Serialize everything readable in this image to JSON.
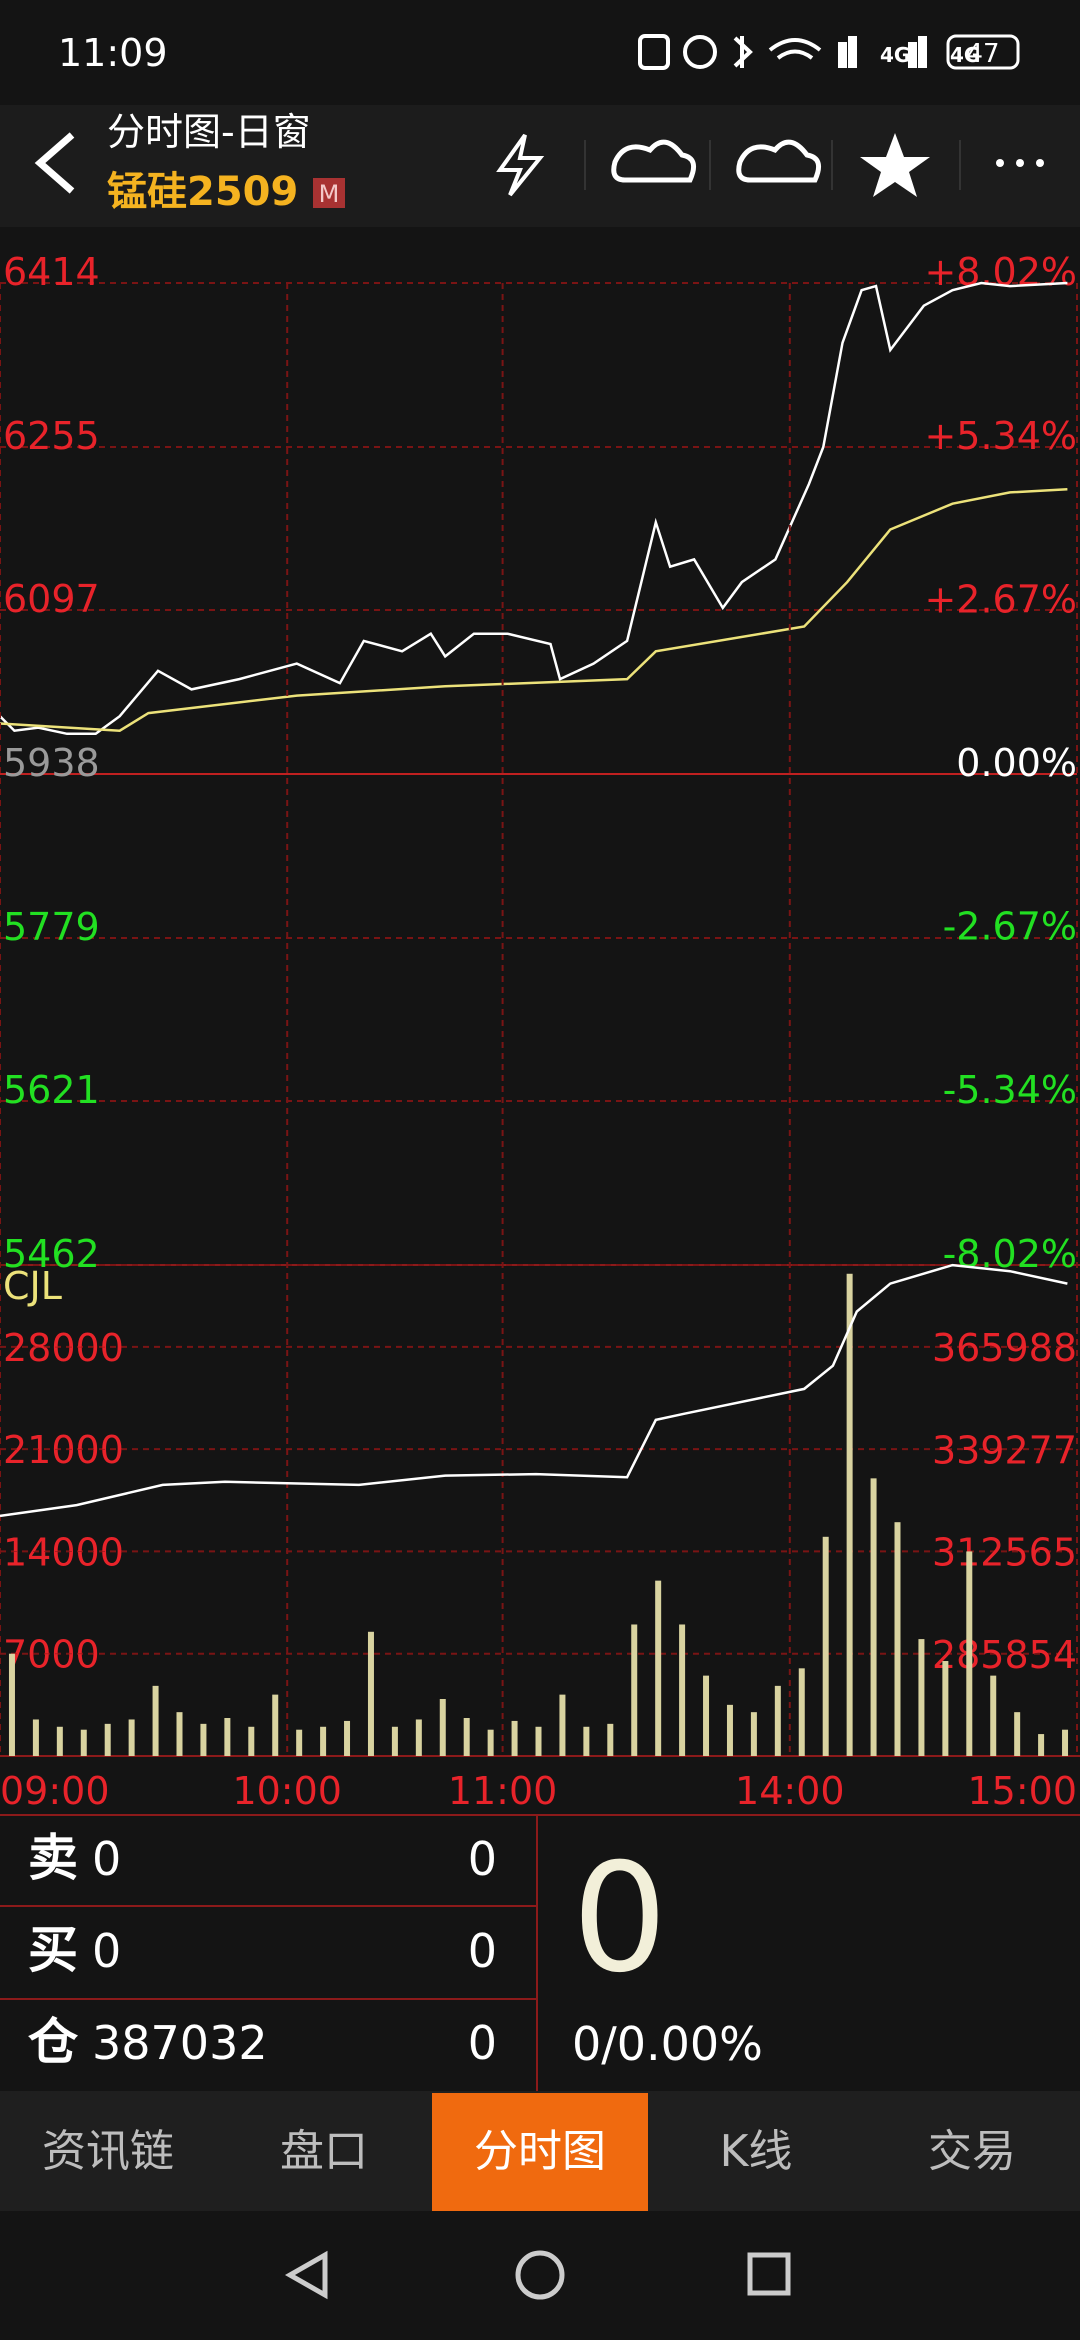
{
  "status_bar": {
    "time": "11:09",
    "network": [
      "4G",
      "4G"
    ],
    "battery": "47"
  },
  "header": {
    "title": "分时图-日窗",
    "symbol": "锰硅2509",
    "badge": "M"
  },
  "chart_data": [
    {
      "type": "line",
      "xlim": [
        0,
        225
      ],
      "ylim": [
        5462,
        6414
      ],
      "yticks": [
        6414,
        6255,
        6097,
        5938,
        5779,
        5621,
        5462
      ],
      "y2lim": [
        -8.02,
        8.02
      ],
      "y2ticks": [
        {
          "value": 8.02,
          "label": "+8.02%"
        },
        {
          "value": 5.34,
          "label": "+5.34%"
        },
        {
          "value": 2.67,
          "label": "+2.67%"
        },
        {
          "value": 0,
          "label": "0.00%"
        },
        {
          "value": -2.67,
          "label": "-2.67%"
        },
        {
          "value": -5.34,
          "label": "-5.34%"
        },
        {
          "value": -8.02,
          "label": "-8.02%"
        }
      ],
      "grid": true,
      "series": [
        {
          "color": "#ffffff",
          "x": [
            0,
            3,
            8,
            14,
            20,
            25,
            33,
            40,
            50,
            62,
            71,
            76,
            84,
            90,
            93,
            99,
            106,
            115,
            117,
            124,
            131,
            137,
            140,
            145,
            151,
            155,
            162,
            169,
            172,
            176,
            180,
            183,
            186,
            193,
            199,
            205,
            211,
            223
          ],
          "values": [
            5994,
            5980,
            5983,
            5977,
            5977,
            5994,
            6038,
            6020,
            6030,
            6045,
            6026,
            6067,
            6057,
            6074,
            6052,
            6074,
            6074,
            6064,
            6030,
            6045,
            6067,
            6182,
            6139,
            6146,
            6099,
            6124,
            6146,
            6219,
            6255,
            6356,
            6407,
            6411,
            6349,
            6392,
            6407,
            6414,
            6411,
            6414
          ]
        },
        {
          "color": "#ece27a",
          "x": [
            0,
            25,
            31,
            62,
            93,
            131,
            137,
            168,
            177,
            186,
            199,
            211,
            223
          ],
          "values": [
            5987,
            5980,
            5997,
            6014,
            6023,
            6030,
            6057,
            6081,
            6124,
            6175,
            6200,
            6211,
            6214
          ]
        }
      ]
    },
    {
      "type": "bar",
      "label": "CJL",
      "xlim": [
        0,
        225
      ],
      "xticks": [
        {
          "value": 0,
          "label": "09:00"
        },
        {
          "value": 60,
          "label": "10:00"
        },
        {
          "value": 105,
          "label": "11:00"
        },
        {
          "value": 165,
          "label": "14:00"
        },
        {
          "value": 225,
          "label": "15:00"
        }
      ],
      "ylim": [
        0,
        33600
      ],
      "yticks": [
        28000,
        21000,
        14000,
        7000
      ],
      "y2lim": [
        259143,
        387438
      ],
      "y2ticks": [
        365988,
        339277,
        312565,
        285854
      ],
      "grid": true,
      "series": [
        {
          "type": "bar",
          "color": "#d9d3a0",
          "x": [
            2.5,
            7.5,
            12.5,
            17.5,
            22.5,
            27.5,
            32.5,
            37.5,
            42.5,
            47.5,
            52.5,
            57.5,
            62.5,
            67.5,
            72.5,
            77.5,
            82.5,
            87.5,
            92.5,
            97.5,
            102.5,
            107.5,
            112.5,
            117.5,
            122.5,
            127.5,
            132.5,
            137.5,
            142.5,
            147.5,
            152.5,
            157.5,
            162.5,
            167.5,
            172.5,
            177.5,
            182.5,
            187.5,
            192.5,
            197.5,
            202.5,
            207.5,
            212.5,
            217.5,
            222.5
          ],
          "values": [
            7000,
            2500,
            2000,
            1800,
            2200,
            2500,
            4800,
            3000,
            2200,
            2600,
            2000,
            4200,
            1800,
            2000,
            2400,
            8500,
            2000,
            2500,
            3900,
            2600,
            1800,
            2400,
            2000,
            4200,
            2000,
            2200,
            9000,
            12000,
            9000,
            5500,
            3500,
            3000,
            4800,
            6000,
            15000,
            33000,
            19000,
            16000,
            8000,
            6500,
            14000,
            5500,
            3000,
            1500,
            1800
          ]
        },
        {
          "type": "line",
          "axis": "y2",
          "color": "#ffffff",
          "x": [
            0,
            16,
            34,
            47,
            75,
            93,
            112,
            131,
            137,
            143,
            168,
            174,
            179,
            186,
            199,
            211,
            223
          ],
          "values": [
            321874,
            324707,
            329968,
            330777,
            329968,
            332397,
            332801,
            331992,
            346966,
            348585,
            355060,
            361131,
            375296,
            382581,
            387400,
            385819,
            382581
          ]
        }
      ]
    }
  ],
  "quote": {
    "rows": [
      {
        "label": "卖",
        "price": "0",
        "volume": "0"
      },
      {
        "label": "买",
        "price": "0",
        "volume": "0"
      },
      {
        "label": "仓",
        "price": "387032",
        "volume": "0"
      }
    ],
    "last": "0",
    "change": "0/0.00%"
  },
  "tabs": [
    "资讯链",
    "盘口",
    "分时图",
    "K线",
    "交易"
  ],
  "active_tab": 2
}
